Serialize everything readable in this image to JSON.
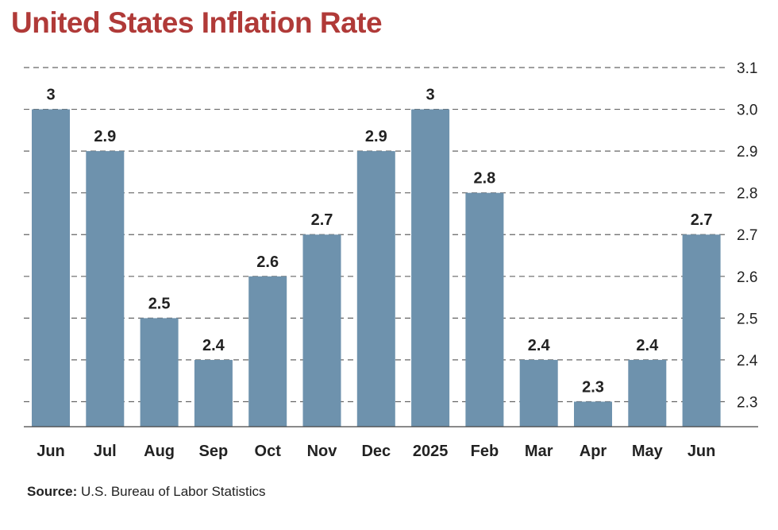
{
  "title": "United States Inflation Rate",
  "source": {
    "label": "Source:",
    "text": "U.S. Bureau of Labor Statistics"
  },
  "colors": {
    "title": "#b03a38",
    "bar": "#6e92ad"
  },
  "chart_data": {
    "type": "bar",
    "title": "United States Inflation Rate",
    "xlabel": "",
    "ylabel": "",
    "categories": [
      "Jun",
      "Jul",
      "Aug",
      "Sep",
      "Oct",
      "Nov",
      "Dec",
      "2025",
      "Feb",
      "Mar",
      "Apr",
      "May",
      "Jun"
    ],
    "values": [
      3,
      2.9,
      2.5,
      2.4,
      2.6,
      2.7,
      2.9,
      3,
      2.8,
      2.4,
      2.3,
      2.4,
      2.7
    ],
    "data_labels": [
      "3",
      "2.9",
      "2.5",
      "2.4",
      "2.6",
      "2.7",
      "2.9",
      "3",
      "2.8",
      "2.4",
      "2.3",
      "2.4",
      "2.7"
    ],
    "yticks": [
      "2.3",
      "2.4",
      "2.5",
      "2.6",
      "2.7",
      "2.8",
      "2.9",
      "3.0",
      "3.1"
    ],
    "ytick_values": [
      2.3,
      2.4,
      2.5,
      2.6,
      2.7,
      2.8,
      2.9,
      3.0,
      3.1
    ],
    "ylim": [
      2.24,
      3.1
    ],
    "y_axis_position": "right",
    "grid": true
  }
}
